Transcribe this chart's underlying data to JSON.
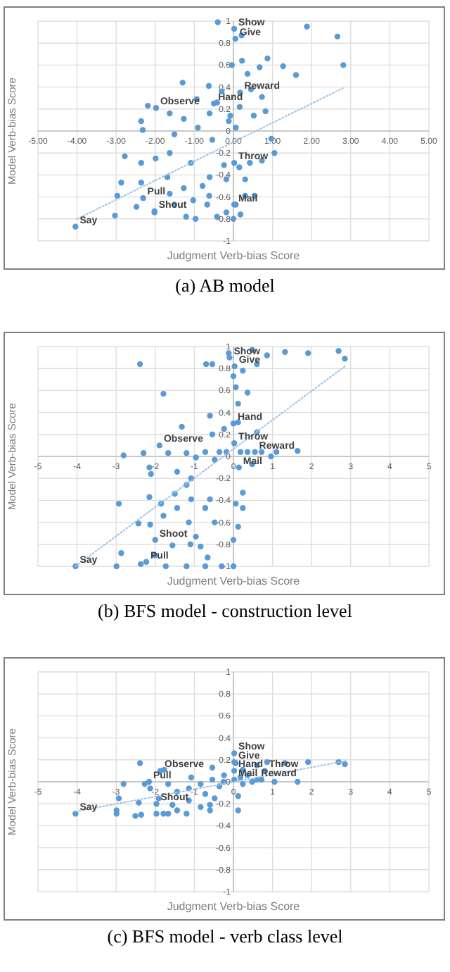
{
  "chart_data": [
    {
      "type": "scatter",
      "title": "(a) AB model",
      "xlabel": "Judgment Verb-bias Score",
      "ylabel": "Model Verb-bias Score",
      "xlim": [
        -5,
        5
      ],
      "ylim": [
        -1,
        1
      ],
      "xticks": [
        {
          "value": -5,
          "label": "-5.00"
        },
        {
          "value": -4,
          "label": "-4.00"
        },
        {
          "value": -3,
          "label": "-3.00"
        },
        {
          "value": -2,
          "label": "-2.00"
        },
        {
          "value": -1,
          "label": "-1.00"
        },
        {
          "value": 0,
          "label": "0.00"
        },
        {
          "value": 1,
          "label": "1.00"
        },
        {
          "value": 2,
          "label": "2.00"
        },
        {
          "value": 3,
          "label": "3.00"
        },
        {
          "value": 4,
          "label": "4.00"
        },
        {
          "value": 5,
          "label": "5.00"
        }
      ],
      "yticks": [
        -1,
        -0.8,
        -0.6,
        -0.4,
        -0.2,
        0,
        0.2,
        0.4,
        0.6,
        0.8,
        1
      ],
      "grid": true,
      "series": [
        {
          "color": "#5b9bd5",
          "marker": "circle",
          "x": [
            1.88,
            2.66,
            2.81,
            1.6,
            1.27,
            0.87,
            0.21,
            -0.4,
            -0.04,
            0.22,
            0.36,
            0.67,
            0.45,
            0.73,
            0.82,
            0.52,
            0.16,
            -0.08,
            -0.42,
            -0.63,
            -1.3,
            -2.19,
            -2.36,
            -2.32,
            -1.63,
            -1.27,
            -0.94,
            -1.51,
            -0.91,
            -0.54,
            0.06,
            0.97,
            1.05,
            0.73,
            0.42,
            0.15,
            0.3,
            -0.18,
            -0.61,
            -1.09,
            -1.63,
            -1.99,
            -2.36,
            -2.78,
            -2.87,
            -2.97,
            -2.36,
            -2.48,
            -2.02,
            -1.69,
            -1.63,
            -1.27,
            -1.03,
            -0.67,
            -0.62,
            -0.18,
            0.06,
            0.54,
            0,
            -0.42,
            -0.97,
            -1.21,
            -3.03,
            -4.04,
            -1.51,
            -0.79,
            -0.24,
            0.18,
            0.3,
            -0.61,
            -0.3,
            -0.12,
            0.02,
            0.05,
            0.17,
            -0.5,
            -1.98,
            0.02,
            -2.31,
            -2.02,
            0.02
          ],
          "values": [
            0.95,
            0.86,
            0.6,
            0.51,
            0.59,
            0.66,
            0.87,
            0.99,
            0.6,
            0.64,
            0.52,
            0.58,
            0.38,
            0.31,
            0.18,
            0.14,
            0.22,
            0.14,
            0.26,
            0.41,
            0.44,
            0.23,
            0.09,
            0.01,
            0.16,
            0.11,
            0.29,
            -0.03,
            0.03,
            -0.08,
            0.03,
            -0.07,
            -0.2,
            -0.27,
            -0.29,
            -0.33,
            -0.44,
            -0.44,
            -0.42,
            -0.29,
            -0.2,
            -0.25,
            -0.29,
            -0.23,
            -0.47,
            -0.59,
            -0.47,
            -0.69,
            -0.74,
            -0.42,
            -0.57,
            -0.52,
            -0.63,
            -0.67,
            -0.59,
            -0.74,
            -0.67,
            -0.59,
            -0.8,
            -0.78,
            -0.8,
            -0.78,
            -0.77,
            -0.87,
            -0.67,
            -0.5,
            -0.31,
            -0.76,
            -0.59,
            0.16,
            0.36,
            0.09,
            0.93,
            0.84,
            0.35,
            0.25,
            0.21,
            -0.29,
            -0.61,
            -0.73,
            -0.67
          ]
        },
        {
          "type": "line",
          "color": "#9dc3e6",
          "line_style": "dotted",
          "x": [
            -4,
            2.8
          ],
          "values": [
            -0.8,
            0.39
          ]
        }
      ],
      "annotations": [
        {
          "text": "Show",
          "x": 0.02,
          "y": 0.93
        },
        {
          "text": "Give",
          "x": 0.05,
          "y": 0.84
        },
        {
          "text": "Reward",
          "x": 0.17,
          "y": 0.35
        },
        {
          "text": "Hand",
          "x": -0.5,
          "y": 0.25
        },
        {
          "text": "Observe",
          "x": -1.98,
          "y": 0.21
        },
        {
          "text": "Throw",
          "x": 0.02,
          "y": -0.29
        },
        {
          "text": "Pull",
          "x": -2.31,
          "y": -0.61
        },
        {
          "text": "Shout",
          "x": -2.02,
          "y": -0.73
        },
        {
          "text": "Mail",
          "x": 0.02,
          "y": -0.67
        },
        {
          "text": "Say",
          "x": -4.04,
          "y": -0.87
        }
      ]
    },
    {
      "type": "scatter",
      "title": "(b) BFS model - construction level",
      "xlabel": "Judgment Verb-bias Score",
      "ylabel": "Model Verb-bias Score",
      "xlim": [
        -5,
        5
      ],
      "ylim": [
        -1,
        1
      ],
      "xticks": [
        -5,
        -4,
        -3,
        -2,
        -1,
        0,
        1,
        2,
        3,
        4,
        5
      ],
      "yticks": [
        -1,
        -0.8,
        -0.6,
        -0.4,
        -0.2,
        0,
        0.2,
        0.4,
        0.6,
        0.8,
        1
      ],
      "grid": true,
      "series": [
        {
          "color": "#5b9bd5",
          "marker": "circle",
          "x": [
            -4.04,
            -2.99,
            -2.87,
            -2.93,
            -2.39,
            -1.79,
            -1.32,
            -2.81,
            -2.3,
            -2.15,
            -2.11,
            -2.15,
            -2.43,
            -2.13,
            -1.79,
            -1.85,
            -1.5,
            -1.44,
            -1.2,
            -1.14,
            -1.08,
            -0.96,
            -1.1,
            -0.84,
            -0.66,
            -0.48,
            -0.72,
            -0.6,
            0.12,
            0,
            0.06,
            0.24,
            0,
            -0.3,
            -0.72,
            -1.2,
            -1.73,
            -2.01,
            -2.37,
            -1.56,
            -1.44,
            -1.08,
            -1.67,
            -1.2,
            -0.72,
            -0.36,
            -0.18,
            0.18,
            0.36,
            0.72,
            1.1,
            1.64,
            0.96,
            -0.96,
            -0.48,
            0.14,
            0.48,
            0.24,
            -0.54,
            -0.24,
            0.12,
            0.6,
            -0.6,
            0.12,
            0.36,
            0.06,
            0,
            0.24,
            0.6,
            -0.54,
            -0.12,
            0.86,
            1.32,
            1.91,
            2.69,
            2.85,
            0.48,
            -0.7,
            -0.1,
            0.03,
            0,
            0.02,
            0.55,
            -1.89,
            -2.0,
            -2.23
          ],
          "values": [
            -1,
            -1,
            -0.88,
            -0.43,
            0.84,
            0.57,
            0.27,
            0.01,
            0.03,
            -0.1,
            -0.16,
            -0.37,
            -0.61,
            -0.62,
            -0.54,
            -0.43,
            -0.34,
            -0.47,
            -0.26,
            -0.6,
            -0.39,
            -0.73,
            -0.8,
            -0.82,
            -0.92,
            -0.6,
            -0.47,
            -0.39,
            -0.64,
            -0.76,
            -0.43,
            -0.47,
            -1,
            -1,
            -1,
            -1,
            -1,
            -0.9,
            -0.98,
            -0.81,
            -0.14,
            -0.2,
            0.03,
            0.03,
            0.04,
            0.04,
            0.04,
            0.04,
            0.04,
            0.04,
            0.04,
            0.05,
            0,
            -0.01,
            -0.03,
            -0.1,
            -0.07,
            -0.33,
            0.2,
            0.25,
            0.31,
            0.22,
            0.37,
            0.48,
            0.58,
            0.63,
            0.73,
            0.78,
            0.84,
            0.84,
            0.94,
            0.92,
            0.95,
            0.94,
            0.96,
            0.89,
            0.97,
            0.84,
            0.9,
            0.82,
            0.3,
            0.12,
            0.04,
            0.1,
            -0.76,
            -0.96
          ]
        },
        {
          "type": "line",
          "color": "#9dc3e6",
          "line_style": "dotted",
          "x": [
            -4.04,
            2.85
          ],
          "values": [
            -1,
            0.82
          ]
        }
      ],
      "annotations": [
        {
          "text": "Show",
          "x": -0.1,
          "y": 0.9
        },
        {
          "text": "Give",
          "x": 0.03,
          "y": 0.82
        },
        {
          "text": "Hand",
          "x": 0,
          "y": 0.3
        },
        {
          "text": "Throw",
          "x": 0.02,
          "y": 0.12
        },
        {
          "text": "Reward",
          "x": 0.55,
          "y": 0.04
        },
        {
          "text": "Observe",
          "x": -1.89,
          "y": 0.1
        },
        {
          "text": "Mail",
          "x": 0.14,
          "y": -0.1
        },
        {
          "text": "Shoot",
          "x": -2.0,
          "y": -0.76
        },
        {
          "text": "Say",
          "x": -4.04,
          "y": -1
        },
        {
          "text": "Pull",
          "x": -2.23,
          "y": -0.96
        }
      ]
    },
    {
      "type": "scatter",
      "title": "(c) BFS model - verb class level",
      "xlabel": "Judgment Verb-bias Score",
      "ylabel": "Model Verb-bias Score",
      "xlim": [
        -5,
        5
      ],
      "ylim": [
        -1,
        1
      ],
      "xticks": [
        -5,
        -4,
        -3,
        -2,
        -1,
        0,
        1,
        2,
        3,
        4,
        5
      ],
      "yticks": [
        -1,
        -0.8,
        -0.6,
        -0.4,
        -0.2,
        0,
        0.2,
        0.4,
        0.6,
        0.8,
        1
      ],
      "grid": true,
      "series": [
        {
          "color": "#5b9bd5",
          "marker": "circle",
          "x": [
            -4.04,
            -2.99,
            -2.93,
            -2.81,
            -2.99,
            -2.51,
            -2.36,
            -2.42,
            -2.39,
            -2.27,
            -2.13,
            -1.97,
            -1.79,
            -1.77,
            -1.67,
            -1.67,
            -1.56,
            -1.44,
            -1.2,
            -1.14,
            -1.14,
            -0.84,
            -0.72,
            -0.48,
            -0.54,
            -0.36,
            -0.6,
            -0.6,
            0.12,
            0.12,
            -0.25,
            0.24,
            0.48,
            0.72,
            1.05,
            1.64,
            0.24,
            0.6,
            0.86,
            1.32,
            1.91,
            2.69,
            2.85,
            0.06,
            0.36,
            -1.44,
            -0.84,
            -1.08,
            -0.24,
            0.18,
            -0.54,
            -1.91,
            0.02,
            0.02,
            0.02,
            0.8,
            0.02,
            0.6,
            -1.87,
            -2.16,
            -1.97
          ],
          "values": [
            -0.29,
            -0.29,
            -0.15,
            -0.02,
            -0.26,
            -0.31,
            -0.3,
            -0.19,
            0.17,
            -0.02,
            -0.06,
            -0.29,
            -0.29,
            0.11,
            -0.02,
            -0.29,
            -0.21,
            -0.26,
            -0.29,
            -0.17,
            -0.06,
            -0.23,
            -0.11,
            -0.15,
            0.02,
            -0.04,
            -0.21,
            -0.26,
            -0.26,
            -0.13,
            0,
            -0.02,
            0,
            0.02,
            0,
            0,
            0.11,
            0.15,
            0.18,
            0.17,
            0.18,
            0.18,
            0.16,
            0.17,
            0.06,
            -0.09,
            -0.02,
            0.04,
            0.06,
            0.04,
            0.13,
            -0.15,
            0.26,
            0.18,
            0.1,
            0.1,
            0.02,
            0.02,
            0.1,
            0,
            -0.2
          ]
        },
        {
          "type": "line",
          "color": "#9dc3e6",
          "line_style": "dotted",
          "x": [
            -4.04,
            2.87
          ],
          "values": [
            -0.27,
            0.19
          ]
        }
      ],
      "annotations": [
        {
          "text": "Show",
          "x": 0.02,
          "y": 0.26
        },
        {
          "text": "Give",
          "x": 0.02,
          "y": 0.18
        },
        {
          "text": "Hand",
          "x": 0.02,
          "y": 0.1
        },
        {
          "text": "Throw",
          "x": 0.8,
          "y": 0.1
        },
        {
          "text": "Reward",
          "x": 0.6,
          "y": 0.02
        },
        {
          "text": "Mail",
          "x": 0.02,
          "y": 0.02
        },
        {
          "text": "Observe",
          "x": -1.87,
          "y": 0.1
        },
        {
          "text": "Pull",
          "x": -2.16,
          "y": 0
        },
        {
          "text": "Shout",
          "x": -1.97,
          "y": -0.2
        },
        {
          "text": "Say",
          "x": -4.04,
          "y": -0.29
        }
      ]
    }
  ]
}
